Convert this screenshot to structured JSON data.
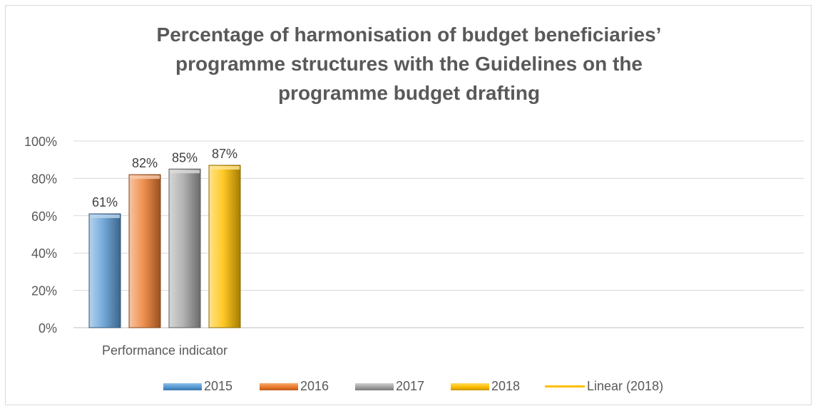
{
  "chart_data": {
    "type": "bar",
    "title_lines": [
      "Percentage of harmonisation of budget beneficiaries’",
      "programme structures with the Guidelines on the",
      "programme budget drafting"
    ],
    "categories": [
      "Performance indicator"
    ],
    "series": [
      {
        "name": "2015",
        "values": [
          0.61
        ],
        "label": "61%",
        "color": "#5b9bd5"
      },
      {
        "name": "2016",
        "values": [
          0.82
        ],
        "label": "82%",
        "color": "#ed7d31"
      },
      {
        "name": "2017",
        "values": [
          0.85
        ],
        "label": "85%",
        "color": "#a5a5a5"
      },
      {
        "name": "2018",
        "values": [
          0.87
        ],
        "label": "87%",
        "color": "#ffc000"
      }
    ],
    "trendline": {
      "name": "Linear (2018)",
      "color": "#ffc000"
    },
    "ylim": [
      0,
      1
    ],
    "y_ticks": [
      "0%",
      "20%",
      "40%",
      "60%",
      "80%",
      "100%"
    ],
    "grid": true,
    "legend_position": "bottom"
  }
}
